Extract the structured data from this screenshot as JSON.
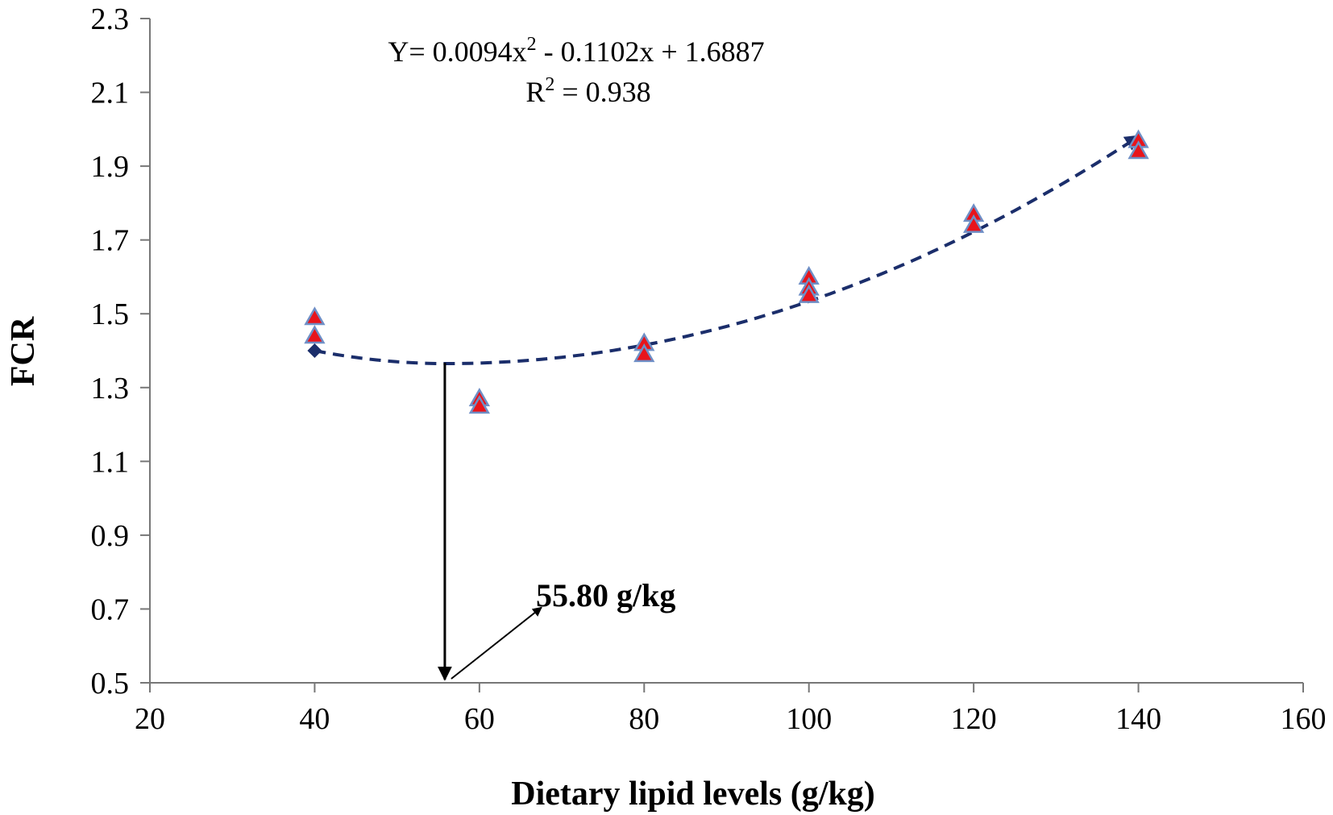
{
  "chart_data": {
    "type": "scatter",
    "xlabel": "Dietary lipid levels (g/kg)",
    "ylabel": "FCR",
    "xlim": [
      20,
      160
    ],
    "ylim": [
      0.5,
      2.3
    ],
    "x_ticks": [
      20,
      40,
      60,
      80,
      100,
      120,
      140,
      160
    ],
    "y_ticks": [
      0.5,
      0.7,
      0.9,
      1.1,
      1.3,
      1.5,
      1.7,
      1.9,
      2.1,
      2.3
    ],
    "x_tick_labels": [
      "20",
      "40",
      "60",
      "80",
      "100",
      "120",
      "140",
      "160"
    ],
    "y_tick_labels": [
      "0.5",
      "0.7",
      "0.9",
      "1.1",
      "1.3",
      "1.5",
      "1.7",
      "1.9",
      "2.1",
      "2.3"
    ],
    "grid": false,
    "series": [
      {
        "marker": "triangle",
        "color": "#e8141b",
        "edge_color": "#6f8fc6",
        "points": [
          {
            "x": 40,
            "y": 1.49
          },
          {
            "x": 40,
            "y": 1.44
          },
          {
            "x": 60,
            "y": 1.27
          },
          {
            "x": 60,
            "y": 1.25
          },
          {
            "x": 80,
            "y": 1.42
          },
          {
            "x": 80,
            "y": 1.39
          },
          {
            "x": 100,
            "y": 1.6
          },
          {
            "x": 100,
            "y": 1.57
          },
          {
            "x": 100,
            "y": 1.55
          },
          {
            "x": 120,
            "y": 1.77
          },
          {
            "x": 120,
            "y": 1.74
          },
          {
            "x": 140,
            "y": 1.97
          },
          {
            "x": 140,
            "y": 1.94
          }
        ]
      },
      {
        "marker": "diamond",
        "color": "#1b2e6b",
        "points": [
          {
            "x": 40,
            "y": 1.4
          }
        ]
      }
    ],
    "trendline": {
      "style": "dashed",
      "color": "#1b2e6b",
      "x_range": [
        40,
        140
      ],
      "start_y": 1.4,
      "min_x": 56,
      "min_y": 1.365,
      "end_y": 1.98
    },
    "annotations": {
      "equation_main": "Y= 0.0094x",
      "equation_sup": "2",
      "equation_rest": " - 0.1102x + 1.6887",
      "r2_main": "R",
      "r2_sup": "2",
      "r2_rest": " = 0.938",
      "optimum_label": "55.80 g/kg",
      "optimum_x": 55.8
    }
  }
}
